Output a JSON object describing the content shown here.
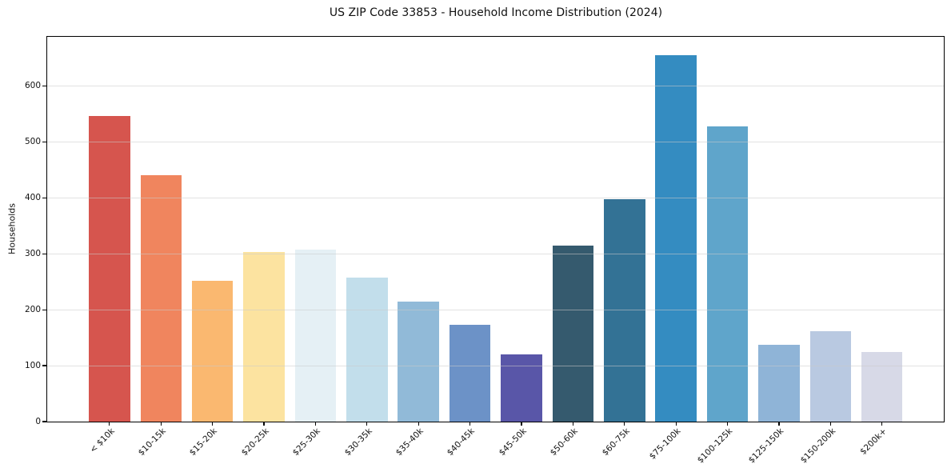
{
  "chart_data": {
    "type": "bar",
    "title": "US ZIP Code 33853 - Household Income Distribution (2024)",
    "xlabel": "",
    "ylabel": "Households",
    "categories": [
      "< $10k",
      "$10-15k",
      "$15-20k",
      "$20-25k",
      "$25-30k",
      "$30-35k",
      "$35-40k",
      "$40-45k",
      "$45-50k",
      "$50-60k",
      "$60-75k",
      "$75-100k",
      "$100-125k",
      "$125-150k",
      "$150-200k",
      "$200k+"
    ],
    "values": [
      546,
      441,
      252,
      303,
      308,
      257,
      215,
      173,
      120,
      314,
      397,
      655,
      528,
      138,
      162,
      125
    ],
    "bar_colors": [
      "#d6554e",
      "#f0855e",
      "#fab870",
      "#fce3a0",
      "#e5f0f5",
      "#c2deeb",
      "#91bad8",
      "#6c92c7",
      "#5956a8",
      "#355a6e",
      "#337295",
      "#348cc1",
      "#5fa5cb",
      "#8fb4d7",
      "#b9c9e1",
      "#d7d9e7"
    ],
    "yticks": [
      0,
      100,
      200,
      300,
      400,
      500,
      600
    ],
    "ylim": [
      0,
      688
    ],
    "xlim": [
      -1.21,
      16.2
    ],
    "bar_width_units": 0.8,
    "grid": "horizontal",
    "grid_rgba": "rgba(203,203,203,0.55)",
    "grid_above_bars": true,
    "spine_color": "#000000",
    "background": "#ffffff",
    "tick_label_rotation_deg": 45,
    "legend": null
  }
}
